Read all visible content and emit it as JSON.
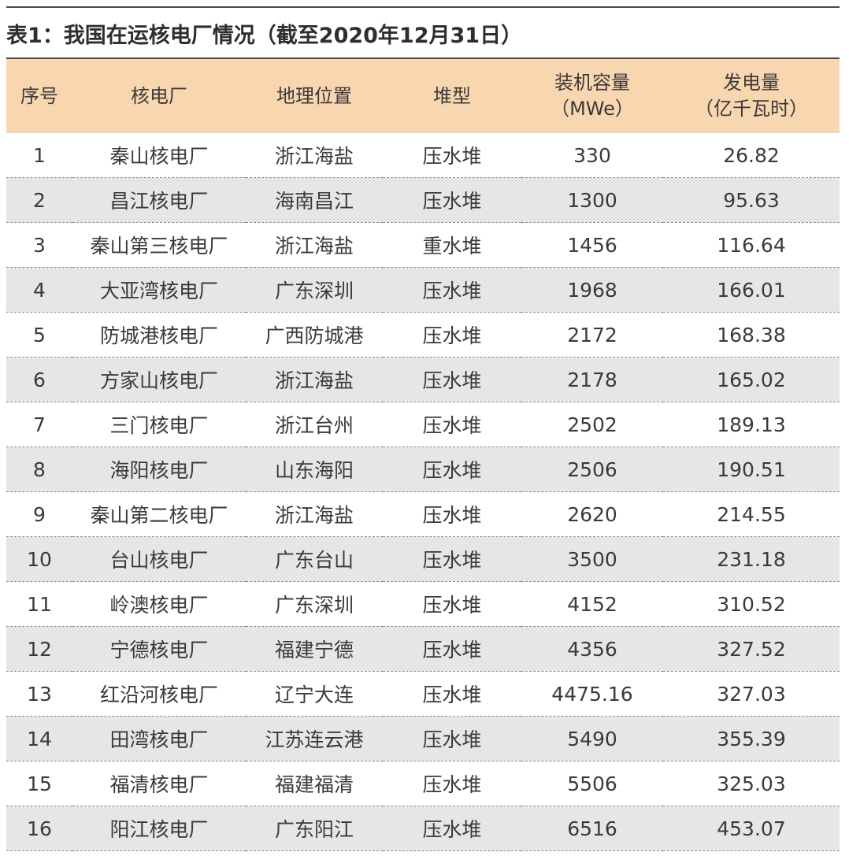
{
  "title": "表1：我国在运核电厂情况（截至2020年12月31日）",
  "headers": {
    "index": "序号",
    "plant": "核电厂",
    "location": "地理位置",
    "reactor_type": "堆型",
    "capacity_line1": "装机容量",
    "capacity_line2": "（MWe）",
    "generation_line1": "发电量",
    "generation_line2": "（亿千瓦时）"
  },
  "rows": [
    {
      "index": "1",
      "plant": "秦山核电厂",
      "location": "浙江海盐",
      "reactor_type": "压水堆",
      "capacity": "330",
      "generation": "26.82"
    },
    {
      "index": "2",
      "plant": "昌江核电厂",
      "location": "海南昌江",
      "reactor_type": "压水堆",
      "capacity": "1300",
      "generation": "95.63"
    },
    {
      "index": "3",
      "plant": "秦山第三核电厂",
      "location": "浙江海盐",
      "reactor_type": "重水堆",
      "capacity": "1456",
      "generation": "116.64"
    },
    {
      "index": "4",
      "plant": "大亚湾核电厂",
      "location": "广东深圳",
      "reactor_type": "压水堆",
      "capacity": "1968",
      "generation": "166.01"
    },
    {
      "index": "5",
      "plant": "防城港核电厂",
      "location": "广西防城港",
      "reactor_type": "压水堆",
      "capacity": "2172",
      "generation": "168.38"
    },
    {
      "index": "6",
      "plant": "方家山核电厂",
      "location": "浙江海盐",
      "reactor_type": "压水堆",
      "capacity": "2178",
      "generation": "165.02"
    },
    {
      "index": "7",
      "plant": "三门核电厂",
      "location": "浙江台州",
      "reactor_type": "压水堆",
      "capacity": "2502",
      "generation": "189.13"
    },
    {
      "index": "8",
      "plant": "海阳核电厂",
      "location": "山东海阳",
      "reactor_type": "压水堆",
      "capacity": "2506",
      "generation": "190.51"
    },
    {
      "index": "9",
      "plant": "秦山第二核电厂",
      "location": "浙江海盐",
      "reactor_type": "压水堆",
      "capacity": "2620",
      "generation": "214.55"
    },
    {
      "index": "10",
      "plant": "台山核电厂",
      "location": "广东台山",
      "reactor_type": "压水堆",
      "capacity": "3500",
      "generation": "231.18"
    },
    {
      "index": "11",
      "plant": "岭澳核电厂",
      "location": "广东深圳",
      "reactor_type": "压水堆",
      "capacity": "4152",
      "generation": "310.52"
    },
    {
      "index": "12",
      "plant": "宁德核电厂",
      "location": "福建宁德",
      "reactor_type": "压水堆",
      "capacity": "4356",
      "generation": "327.52"
    },
    {
      "index": "13",
      "plant": "红沿河核电厂",
      "location": "辽宁大连",
      "reactor_type": "压水堆",
      "capacity": "4475.16",
      "generation": "327.03"
    },
    {
      "index": "14",
      "plant": "田湾核电厂",
      "location": "江苏连云港",
      "reactor_type": "压水堆",
      "capacity": "5490",
      "generation": "355.39"
    },
    {
      "index": "15",
      "plant": "福清核电厂",
      "location": "福建福清",
      "reactor_type": "压水堆",
      "capacity": "5506",
      "generation": "325.03"
    },
    {
      "index": "16",
      "plant": "阳江核电厂",
      "location": "广东阳江",
      "reactor_type": "压水堆",
      "capacity": "6516",
      "generation": "453.07"
    }
  ],
  "colors": {
    "header_background": "#f8d6b0",
    "striped_row_background": "#e6e6e6",
    "rule": "#4a4a4a",
    "text": "#3a3a3a"
  }
}
